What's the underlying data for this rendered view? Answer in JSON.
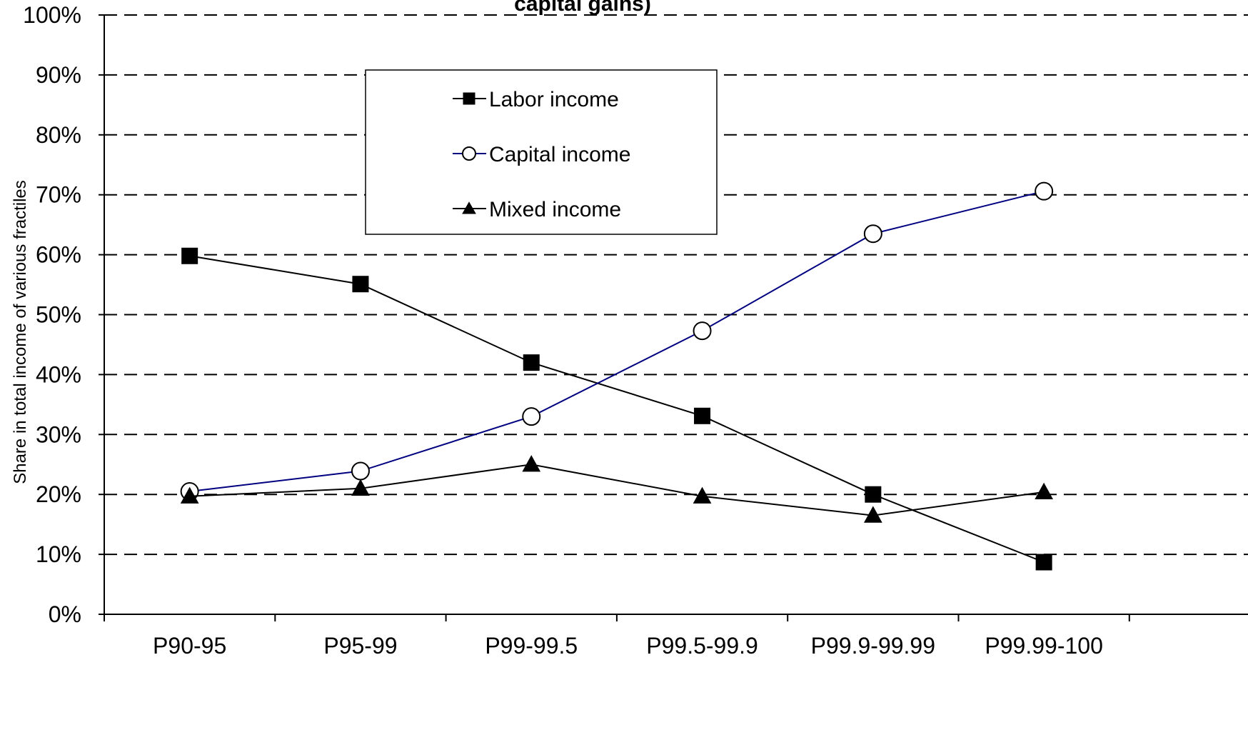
{
  "chart_data": {
    "type": "line",
    "title": "capital gains)",
    "xlabel": "",
    "ylabel": "Share in total income of various fractiles",
    "categories": [
      "P90-95",
      "P95-99",
      "P99-99.5",
      "P99.5-99.9",
      "P99.9-99.99",
      "P99.99-100"
    ],
    "y_ticks": [
      "0%",
      "10%",
      "20%",
      "30%",
      "40%",
      "50%",
      "60%",
      "70%",
      "80%",
      "90%",
      "100%"
    ],
    "ylim": [
      0,
      100
    ],
    "grid": "horizontal-dashed",
    "legend_position": "top-center",
    "series": [
      {
        "name": "Labor income",
        "values": [
          59.8,
          55.1,
          42.0,
          33.1,
          20.0,
          8.7
        ],
        "color": "#000000",
        "marker": "square-filled"
      },
      {
        "name": "Capital income",
        "values": [
          20.5,
          23.9,
          33.0,
          47.3,
          63.5,
          70.6
        ],
        "color": "#000080",
        "marker": "circle-open"
      },
      {
        "name": "Mixed income",
        "values": [
          19.7,
          21.0,
          25.0,
          19.7,
          16.5,
          20.4
        ],
        "color": "#000000",
        "marker": "triangle-filled"
      }
    ]
  }
}
